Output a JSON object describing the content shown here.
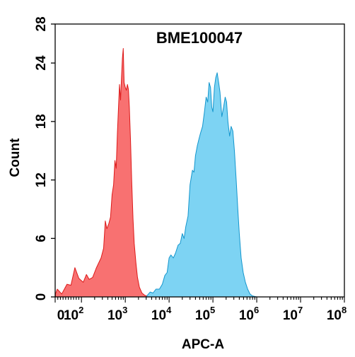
{
  "chart_data": {
    "type": "area",
    "title": "BME100047",
    "xlabel": "APC-A",
    "ylabel": "Count",
    "xscale": "biexponential (log above 10^2)",
    "xlim_exp": [
      0,
      8
    ],
    "ylim": [
      0,
      28
    ],
    "yticks": [
      "0",
      "6",
      "12",
      "18",
      "24",
      "28"
    ],
    "xticks": [
      {
        "value": 0,
        "base": "0",
        "exp": ""
      },
      {
        "value": 100,
        "base": "10",
        "exp": "2"
      },
      {
        "value": 1000,
        "base": "10",
        "exp": "3"
      },
      {
        "value": 10000,
        "base": "10",
        "exp": "4"
      },
      {
        "value": 100000,
        "base": "10",
        "exp": "5"
      },
      {
        "value": 1000000,
        "base": "10",
        "exp": "6"
      },
      {
        "value": 10000000,
        "base": "10",
        "exp": "7"
      },
      {
        "value": 100000000,
        "base": "10",
        "exp": "8"
      }
    ],
    "grid": false,
    "legend": "none",
    "series": [
      {
        "color_fill": "#f87171",
        "color_line": "#dd1a1a",
        "points": [
          [
            1,
            0.3
          ],
          [
            8,
            0.8
          ],
          [
            25,
            0.3
          ],
          [
            45,
            1.3
          ],
          [
            60,
            1.2
          ],
          [
            75,
            3.0
          ],
          [
            90,
            1.9
          ],
          [
            110,
            1.5
          ],
          [
            130,
            2.3
          ],
          [
            150,
            1.8
          ],
          [
            180,
            2.0
          ],
          [
            220,
            3.0
          ],
          [
            280,
            4.0
          ],
          [
            320,
            5.0
          ],
          [
            350,
            7.8
          ],
          [
            380,
            7.0
          ],
          [
            420,
            7.5
          ],
          [
            460,
            8.2
          ],
          [
            500,
            10.5
          ],
          [
            540,
            11.5
          ],
          [
            580,
            14.0
          ],
          [
            620,
            13.2
          ],
          [
            660,
            16.8
          ],
          [
            700,
            19.5
          ],
          [
            740,
            21.8
          ],
          [
            780,
            20.2
          ],
          [
            820,
            22.5
          ],
          [
            860,
            24.5
          ],
          [
            900,
            25.5
          ],
          [
            940,
            22.0
          ],
          [
            1000,
            21.5
          ],
          [
            1060,
            21.2
          ],
          [
            1120,
            21.8
          ],
          [
            1180,
            21.3
          ],
          [
            1240,
            19.5
          ],
          [
            1320,
            16.0
          ],
          [
            1400,
            12.0
          ],
          [
            1500,
            8.0
          ],
          [
            1600,
            5.5
          ],
          [
            1750,
            3.5
          ],
          [
            1900,
            2.0
          ],
          [
            2100,
            1.0
          ],
          [
            2400,
            0.4
          ],
          [
            2800,
            0.15
          ],
          [
            3500,
            0.05
          ],
          [
            4500,
            0
          ]
        ]
      },
      {
        "color_fill": "#7dd3f3",
        "color_line": "#1496cd",
        "points": [
          [
            3000,
            0
          ],
          [
            3300,
            0.25
          ],
          [
            3700,
            0.5
          ],
          [
            4300,
            0.4
          ],
          [
            5000,
            0.8
          ],
          [
            6000,
            0.8
          ],
          [
            7000,
            1.3
          ],
          [
            8000,
            2.2
          ],
          [
            9000,
            2.5
          ],
          [
            10000,
            4.0
          ],
          [
            11000,
            4.3
          ],
          [
            12500,
            4.0
          ],
          [
            14000,
            4.5
          ],
          [
            16000,
            5.3
          ],
          [
            18000,
            5.5
          ],
          [
            20000,
            6.5
          ],
          [
            22000,
            6.0
          ],
          [
            24000,
            7.2
          ],
          [
            27000,
            8.3
          ],
          [
            30000,
            11.5
          ],
          [
            34000,
            13.0
          ],
          [
            37000,
            12.8
          ],
          [
            40000,
            14.5
          ],
          [
            44000,
            15.5
          ],
          [
            48000,
            16.2
          ],
          [
            52000,
            16.8
          ],
          [
            58000,
            17.5
          ],
          [
            64000,
            19.0
          ],
          [
            70000,
            20.5
          ],
          [
            76000,
            20.0
          ],
          [
            82000,
            22.0
          ],
          [
            88000,
            21.5
          ],
          [
            94000,
            19.5
          ],
          [
            100000,
            19.0
          ],
          [
            108000,
            21.5
          ],
          [
            116000,
            22.5
          ],
          [
            125000,
            23.0
          ],
          [
            135000,
            22.0
          ],
          [
            145000,
            21.0
          ],
          [
            160000,
            18.5
          ],
          [
            175000,
            19.5
          ],
          [
            190000,
            20.5
          ],
          [
            205000,
            20.0
          ],
          [
            220000,
            18.0
          ],
          [
            240000,
            16.5
          ],
          [
            260000,
            17.5
          ],
          [
            285000,
            17.0
          ],
          [
            310000,
            15.0
          ],
          [
            340000,
            12.0
          ],
          [
            370000,
            9.0
          ],
          [
            400000,
            6.5
          ],
          [
            440000,
            4.0
          ],
          [
            490000,
            2.5
          ],
          [
            550000,
            1.5
          ],
          [
            620000,
            0.8
          ],
          [
            700000,
            0.3
          ],
          [
            800000,
            0.1
          ],
          [
            1000000,
            0
          ]
        ]
      }
    ]
  }
}
